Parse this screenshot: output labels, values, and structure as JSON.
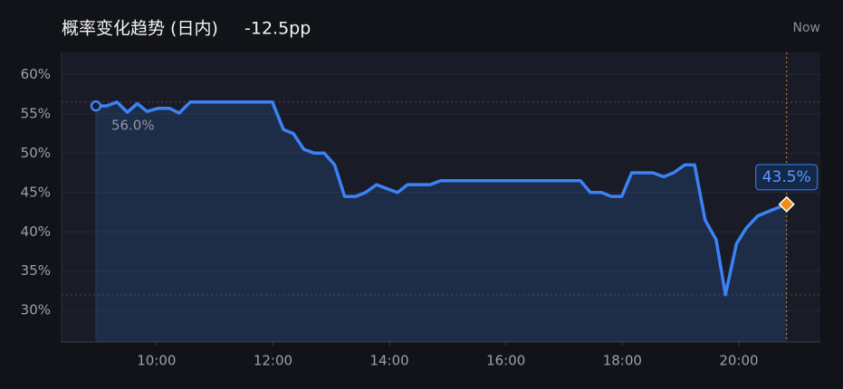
{
  "chart_data": {
    "type": "line",
    "title": "概率变化趋势 (日内)",
    "subtitle": "-12.5pp",
    "now_label": "Now",
    "x": [
      8.96,
      9.14,
      9.32,
      9.5,
      9.67,
      9.84,
      10.03,
      10.22,
      10.39,
      10.58,
      11.99,
      12.18,
      12.35,
      12.53,
      12.71,
      12.88,
      13.06,
      13.23,
      13.42,
      13.59,
      13.78,
      13.95,
      14.14,
      14.31,
      14.7,
      14.88,
      17.28,
      17.45,
      17.64,
      17.81,
      17.99,
      18.16,
      18.52,
      18.71,
      18.88,
      19.07,
      19.24,
      19.42,
      19.61,
      19.77,
      19.96,
      20.13,
      20.32,
      20.48,
      20.82
    ],
    "series": [
      {
        "name": "概率",
        "color": "#3b82f6",
        "values": [
          56.0,
          56.0,
          56.5,
          55.2,
          56.3,
          55.3,
          55.7,
          55.7,
          55.1,
          56.5,
          56.5,
          53.0,
          52.5,
          50.5,
          50.0,
          50.0,
          48.5,
          44.5,
          44.5,
          45.0,
          46.0,
          45.5,
          45.0,
          46.0,
          46.0,
          46.5,
          46.5,
          45.0,
          45.0,
          44.5,
          44.5,
          47.5,
          47.5,
          47.0,
          47.5,
          48.5,
          48.5,
          41.5,
          39.0,
          32.0,
          38.5,
          40.5,
          42.0,
          42.5,
          43.5
        ],
        "value_labels": [
          "56.0%",
          null,
          null,
          null,
          null,
          null,
          null,
          null,
          null,
          null,
          null,
          null,
          null,
          null,
          null,
          null,
          null,
          null,
          null,
          null,
          null,
          null,
          null,
          null,
          null,
          null,
          null,
          null,
          null,
          null,
          null,
          null,
          null,
          null,
          null,
          null,
          null,
          null,
          null,
          null,
          null,
          null,
          null,
          null,
          "43.5%"
        ]
      }
    ],
    "xlim": [
      8.37,
      21.4
    ],
    "xticks": [
      {
        "value": 10,
        "label": "10:00"
      },
      {
        "value": 12,
        "label": "12:00"
      },
      {
        "value": 14,
        "label": "14:00"
      },
      {
        "value": 16,
        "label": "16:00"
      },
      {
        "value": 18,
        "label": "18:00"
      },
      {
        "value": 20,
        "label": "20:00"
      }
    ],
    "ylim": [
      26,
      62.8
    ],
    "yticks": [
      {
        "value": 30,
        "label": "30%"
      },
      {
        "value": 35,
        "label": "35%"
      },
      {
        "value": 40,
        "label": "40%"
      },
      {
        "value": 45,
        "label": "45%"
      },
      {
        "value": 50,
        "label": "50%"
      },
      {
        "value": 55,
        "label": "55%"
      },
      {
        "value": 60,
        "label": "60%"
      }
    ],
    "grid": true
  }
}
